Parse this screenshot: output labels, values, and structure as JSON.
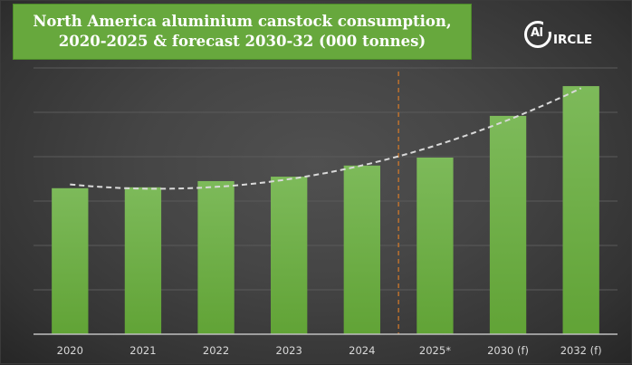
{
  "chart_data": {
    "type": "bar",
    "title_lines": [
      "North America aluminium canstock consumption,",
      "2020-2025 & forecast  2030-32 (000 tonnes)"
    ],
    "categories": [
      "2020",
      "2021",
      "2022",
      "2023",
      "2024",
      "2025*",
      "2030 (f)",
      "2032 (f)"
    ],
    "values_unit": "gridline intervals (no y-axis labels shown)",
    "values": [
      3.29,
      3.31,
      3.45,
      3.55,
      3.8,
      3.98,
      4.92,
      5.59
    ],
    "trendline": {
      "type": "polynomial",
      "style": "dashed",
      "color": "#d9d9d9"
    },
    "forecast_divider": {
      "after_category": "2024",
      "style": "dashed",
      "color": "#d0782a"
    },
    "xlabel": "",
    "ylabel": "",
    "ylim": [
      0,
      6
    ],
    "grid": true,
    "gridlines": 6,
    "bar_color": "#6aaa3e",
    "bar_color_top": "#7cba5a"
  },
  "logo": {
    "prefix": "Al",
    "suffix": "IRCLE"
  }
}
